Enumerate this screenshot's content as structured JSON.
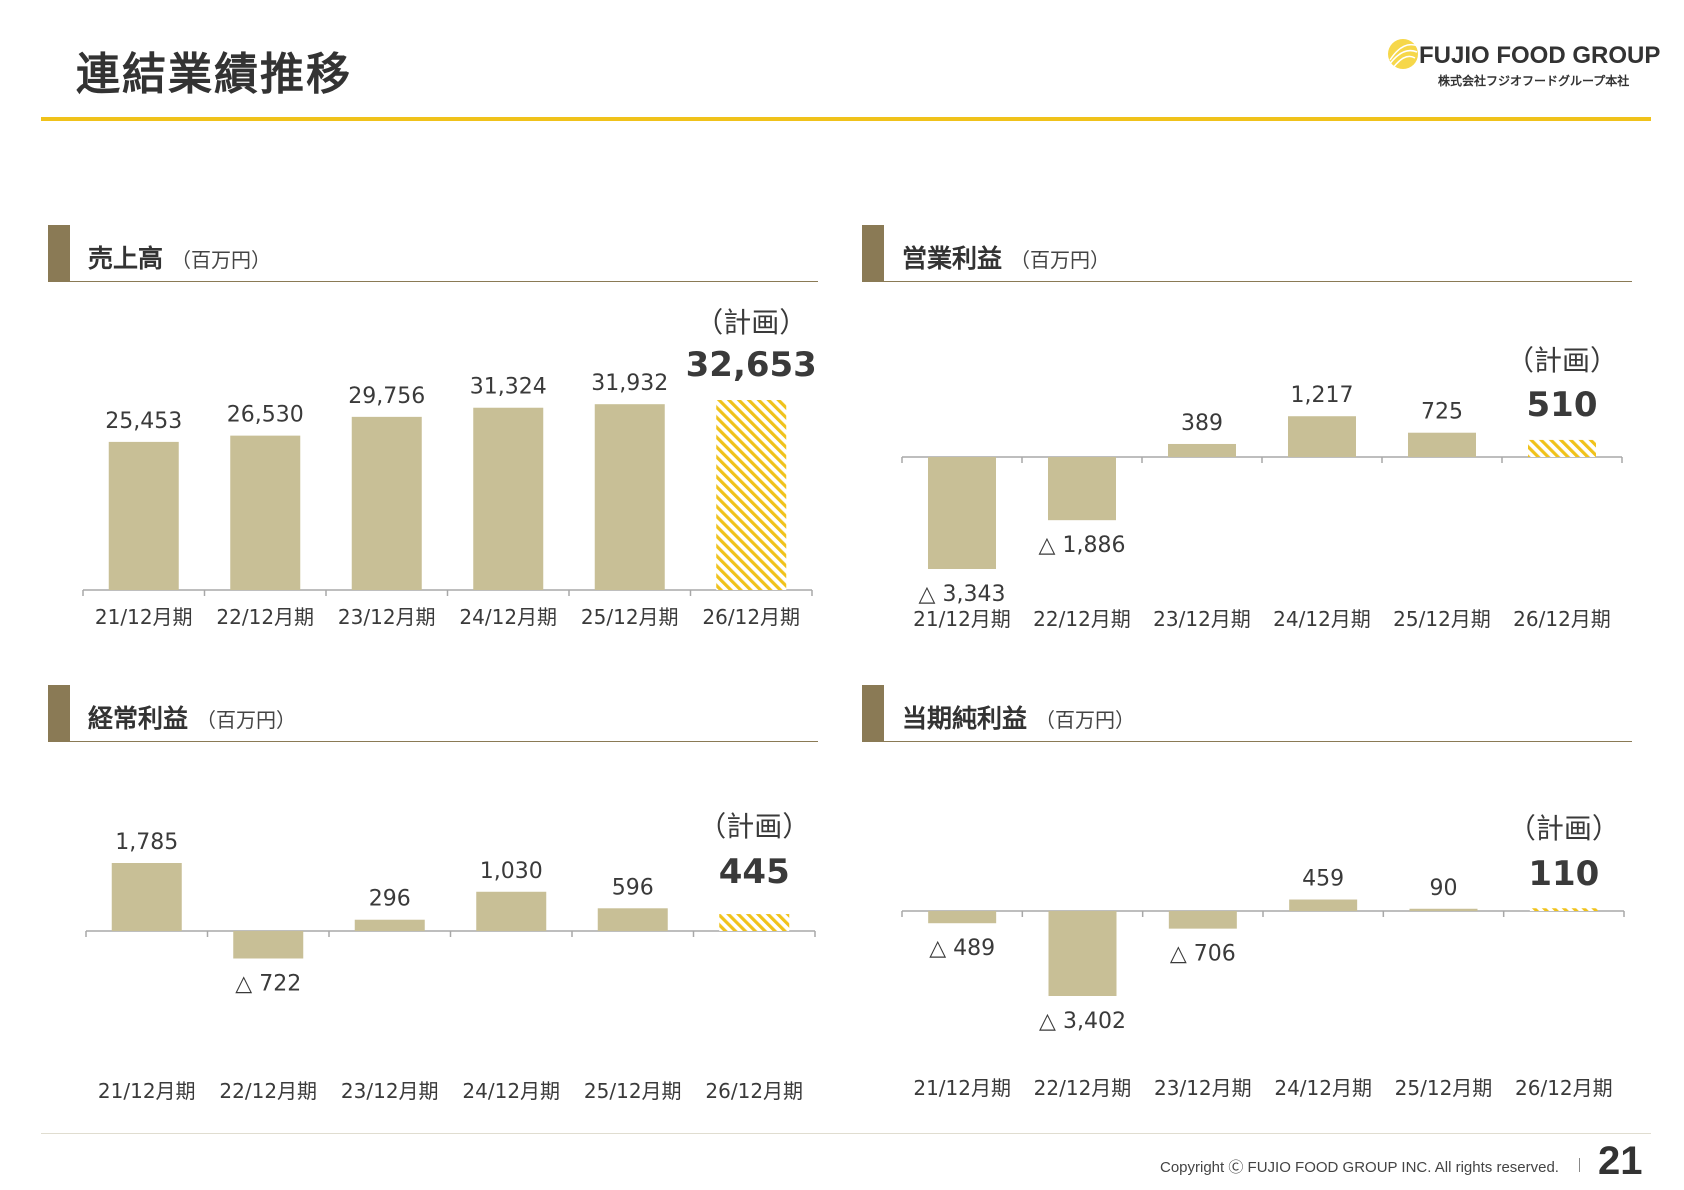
{
  "page_title": "連結業績推移",
  "logo": {
    "name": "FUJIO FOOD GROUP",
    "subtitle": "株式会社フジオフードグループ本社"
  },
  "colors": {
    "accent": "#f0c21a",
    "bar": "#c8bf96",
    "panel_marker": "#8a7a55",
    "plan_hatch": "#f0c21a"
  },
  "panels": [
    {
      "title": "売上高",
      "unit": "（百万円）"
    },
    {
      "title": "営業利益",
      "unit": "（百万円）"
    },
    {
      "title": "経常利益",
      "unit": "（百万円）"
    },
    {
      "title": "当期純利益",
      "unit": "（百万円）"
    }
  ],
  "chart_data": [
    {
      "type": "bar",
      "title": "売上高",
      "unit": "（百万円）",
      "categories": [
        "21/12月期",
        "22/12月期",
        "23/12月期",
        "24/12月期",
        "25/12月期",
        "26/12月期"
      ],
      "values": [
        25453,
        26530,
        29756,
        31324,
        31932,
        32653
      ],
      "labels": [
        "25,453",
        "26,530",
        "29,756",
        "31,324",
        "31,932",
        "32,653"
      ],
      "plan_label": "（計画）",
      "plan_index": 5,
      "ylim": [
        0,
        34000
      ]
    },
    {
      "type": "bar",
      "title": "営業利益",
      "unit": "（百万円）",
      "categories": [
        "21/12月期",
        "22/12月期",
        "23/12月期",
        "24/12月期",
        "25/12月期",
        "26/12月期"
      ],
      "values": [
        -3343,
        -1886,
        389,
        1217,
        725,
        510
      ],
      "labels": [
        "△ 3,343",
        "△ 1,886",
        "389",
        "1,217",
        "725",
        "510"
      ],
      "plan_label": "（計画）",
      "plan_index": 5,
      "ylim": [
        -3343,
        1217
      ]
    },
    {
      "type": "bar",
      "title": "経常利益",
      "unit": "（百万円）",
      "categories": [
        "21/12月期",
        "22/12月期",
        "23/12月期",
        "24/12月期",
        "25/12月期",
        "26/12月期"
      ],
      "values": [
        1785,
        -722,
        296,
        1030,
        596,
        445
      ],
      "labels": [
        "1,785",
        "△ 722",
        "296",
        "1,030",
        "596",
        "445"
      ],
      "plan_label": "（計画）",
      "plan_index": 5,
      "ylim": [
        -722,
        1785
      ]
    },
    {
      "type": "bar",
      "title": "当期純利益",
      "unit": "（百万円）",
      "categories": [
        "21/12月期",
        "22/12月期",
        "23/12月期",
        "24/12月期",
        "25/12月期",
        "26/12月期"
      ],
      "values": [
        -489,
        -3402,
        -706,
        459,
        90,
        110
      ],
      "labels": [
        "△ 489",
        "△ 3,402",
        "△ 706",
        "459",
        "90",
        "110"
      ],
      "plan_label": "（計画）",
      "plan_index": 5,
      "ylim": [
        -3402,
        459
      ]
    }
  ],
  "footer": {
    "copyright": "Copyright Ⓒ FUJIO FOOD GROUP INC. All rights reserved.",
    "page_number": "21"
  }
}
